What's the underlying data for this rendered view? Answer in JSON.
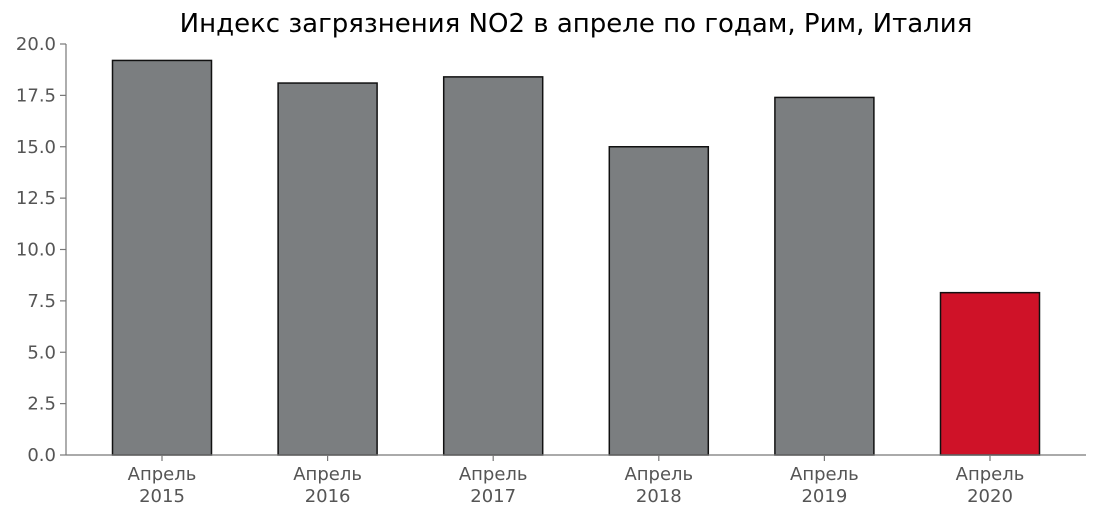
{
  "chart_data": {
    "type": "bar",
    "title": "Индекс загрязнения NO2 в апреле по годам, Рим, Италия",
    "xlabel": "",
    "ylabel": "",
    "categories": [
      [
        "Апрель",
        "2015"
      ],
      [
        "Апрель",
        "2016"
      ],
      [
        "Апрель",
        "2017"
      ],
      [
        "Апрель",
        "2018"
      ],
      [
        "Апрель",
        "2019"
      ],
      [
        "Апрель",
        "2020"
      ]
    ],
    "values": [
      19.2,
      18.1,
      18.4,
      15.0,
      17.4,
      7.9
    ],
    "colors": [
      "#7b7e80",
      "#7b7e80",
      "#7b7e80",
      "#7b7e80",
      "#7b7e80",
      "#cf1228"
    ],
    "ylim": [
      0,
      20
    ],
    "yticks": [
      "0.0",
      "2.5",
      "5.0",
      "7.5",
      "10.0",
      "12.5",
      "15.0",
      "17.5",
      "20.0"
    ],
    "grid": false,
    "legend": "none"
  }
}
